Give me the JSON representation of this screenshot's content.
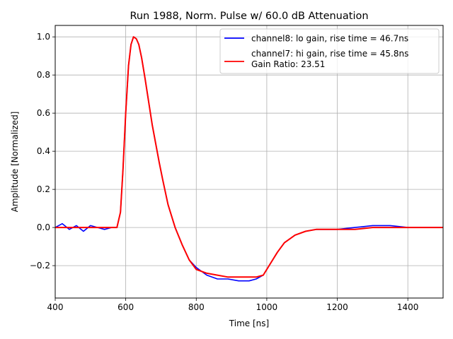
{
  "chart_data": {
    "type": "line",
    "title": "Run 1988, Norm. Pulse w/ 60.0 dB Attenuation",
    "xlabel": "Time [ns]",
    "ylabel": "Amplitude [Normalized]",
    "xlim": [
      400,
      1500
    ],
    "ylim": [
      -0.37,
      1.06
    ],
    "grid": true,
    "legend_position": "top-right",
    "x_ticks": [
      {
        "value": 400,
        "label": "400"
      },
      {
        "value": 600,
        "label": "600"
      },
      {
        "value": 800,
        "label": "800"
      },
      {
        "value": 1000,
        "label": "1000"
      },
      {
        "value": 1200,
        "label": "1200"
      },
      {
        "value": 1400,
        "label": "1400"
      }
    ],
    "y_ticks": [
      {
        "value": -0.2,
        "label": "−0.2"
      },
      {
        "value": 0.0,
        "label": "0.0"
      },
      {
        "value": 0.2,
        "label": "0.2"
      },
      {
        "value": 0.4,
        "label": "0.4"
      },
      {
        "value": 0.6,
        "label": "0.6"
      },
      {
        "value": 0.8,
        "label": "0.8"
      },
      {
        "value": 1.0,
        "label": "1.0"
      }
    ],
    "series": [
      {
        "name": "channel8: lo gain, rise time = 46.7ns",
        "color": "#0000ff",
        "x": [
          400,
          420,
          440,
          460,
          480,
          500,
          520,
          540,
          560,
          575,
          585,
          592,
          600,
          608,
          615,
          622,
          630,
          637,
          645,
          655,
          665,
          675,
          685,
          695,
          705,
          720,
          740,
          760,
          780,
          800,
          830,
          860,
          890,
          920,
          950,
          970,
          990,
          1010,
          1030,
          1050,
          1080,
          1110,
          1140,
          1170,
          1200,
          1250,
          1300,
          1350,
          1400,
          1450,
          1500
        ],
        "y": [
          0.0,
          0.02,
          -0.01,
          0.01,
          -0.02,
          0.01,
          0.0,
          -0.01,
          0.0,
          0.0,
          0.08,
          0.3,
          0.6,
          0.85,
          0.96,
          1.0,
          0.99,
          0.96,
          0.89,
          0.78,
          0.66,
          0.54,
          0.44,
          0.34,
          0.25,
          0.12,
          0.0,
          -0.09,
          -0.17,
          -0.21,
          -0.25,
          -0.27,
          -0.27,
          -0.28,
          -0.28,
          -0.27,
          -0.25,
          -0.19,
          -0.13,
          -0.08,
          -0.04,
          -0.02,
          -0.01,
          -0.01,
          -0.01,
          0.0,
          0.01,
          0.01,
          0.0,
          0.0,
          0.0
        ]
      },
      {
        "name": "channel7: hi gain, rise time = 45.8ns",
        "color": "#ff0000",
        "x": [
          400,
          450,
          500,
          550,
          575,
          585,
          592,
          600,
          608,
          615,
          622,
          630,
          637,
          645,
          655,
          665,
          675,
          685,
          695,
          705,
          720,
          740,
          760,
          780,
          800,
          830,
          860,
          890,
          920,
          950,
          970,
          990,
          1010,
          1030,
          1050,
          1080,
          1110,
          1140,
          1170,
          1200,
          1250,
          1300,
          1350,
          1400,
          1450,
          1500
        ],
        "y": [
          0.0,
          0.0,
          0.0,
          0.0,
          0.0,
          0.08,
          0.3,
          0.6,
          0.85,
          0.96,
          1.0,
          0.99,
          0.96,
          0.89,
          0.78,
          0.66,
          0.54,
          0.44,
          0.34,
          0.25,
          0.12,
          0.0,
          -0.09,
          -0.17,
          -0.22,
          -0.24,
          -0.25,
          -0.26,
          -0.26,
          -0.26,
          -0.26,
          -0.25,
          -0.19,
          -0.13,
          -0.08,
          -0.04,
          -0.02,
          -0.01,
          -0.01,
          -0.01,
          -0.01,
          0.0,
          0.0,
          0.0,
          0.0,
          0.0
        ]
      }
    ],
    "legend_extra": "Gain Ratio: 23.51"
  }
}
